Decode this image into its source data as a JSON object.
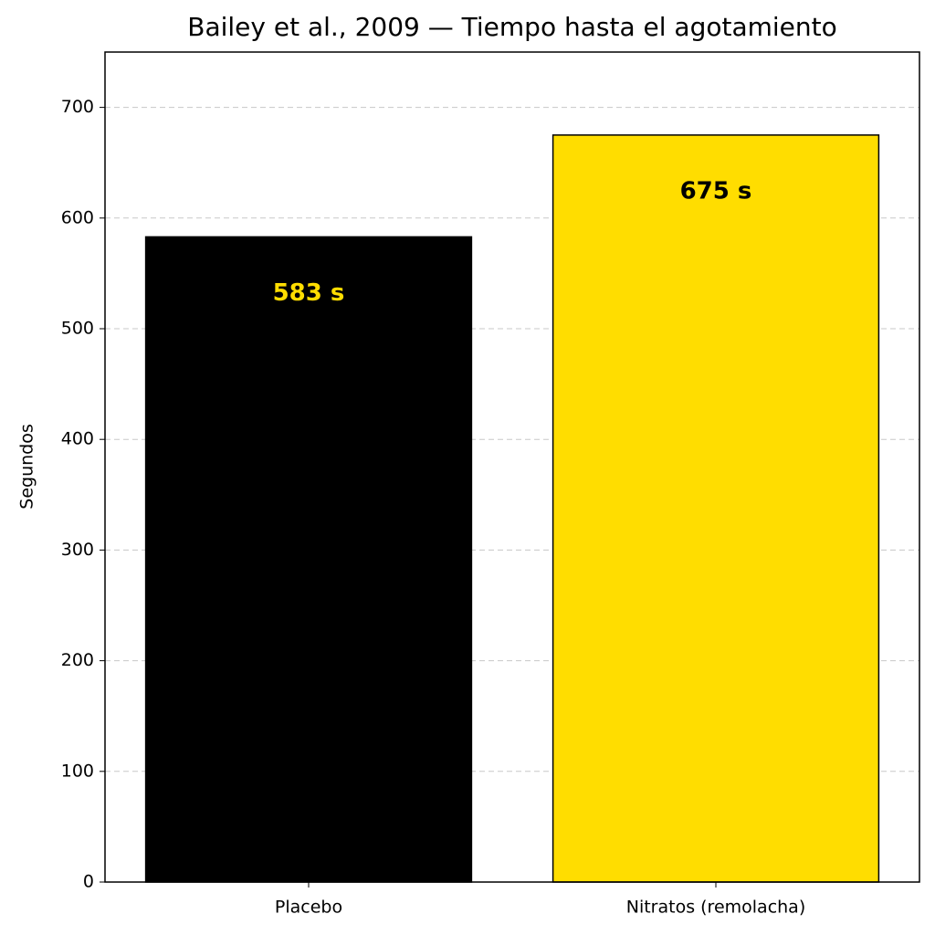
{
  "chart_data": {
    "type": "bar",
    "title": "Bailey et al., 2009 — Tiempo hasta el agotamiento",
    "y_label": "Segundos",
    "categories": [
      "Placebo",
      "Nitratos (remolacha)"
    ],
    "values": [
      583,
      675
    ],
    "value_labels": [
      "583 s",
      "675 s"
    ],
    "colors": [
      "#000000",
      "#ffdd00"
    ],
    "label_colors": [
      "#ffdd00",
      "#000000"
    ],
    "edge_color": "#000000",
    "ylim": [
      0,
      750
    ],
    "yticks": [
      0,
      100,
      200,
      300,
      400,
      500,
      600,
      700
    ],
    "grid": true
  }
}
